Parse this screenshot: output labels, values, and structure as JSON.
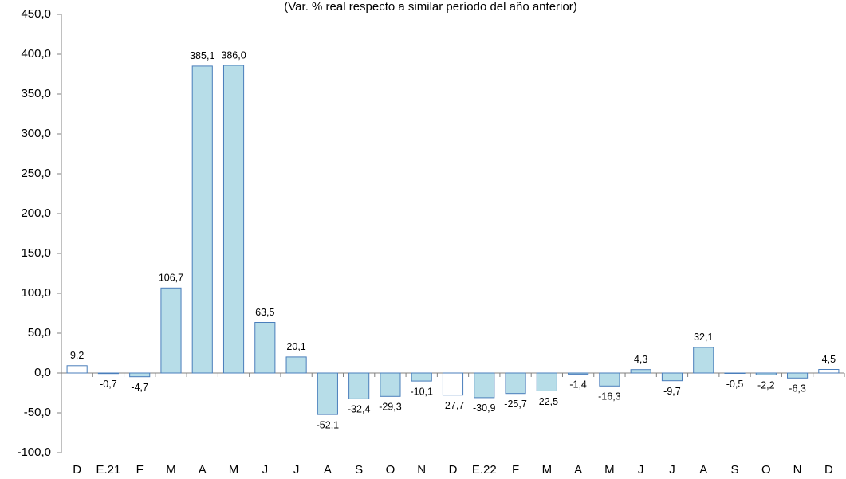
{
  "chart_data": {
    "type": "bar",
    "subtitle": "(Var. % real respecto a similar período del año anterior)",
    "categories": [
      "D",
      "E.21",
      "F",
      "M",
      "A",
      "M",
      "J",
      "J",
      "A",
      "S",
      "O",
      "N",
      "D",
      "E.22",
      "F",
      "M",
      "A",
      "M",
      "J",
      "J",
      "A",
      "S",
      "O",
      "N",
      "D"
    ],
    "values": [
      9.2,
      -0.7,
      -4.7,
      106.7,
      385.1,
      386.0,
      63.5,
      20.1,
      -52.1,
      -32.4,
      -29.3,
      -10.1,
      -27.7,
      -30.9,
      -25.7,
      -22.5,
      -1.4,
      -16.3,
      4.3,
      -9.7,
      32.1,
      -0.5,
      -2.2,
      -6.3,
      4.5
    ],
    "value_labels": [
      "9,2",
      "-0,7",
      "-4,7",
      "106,7",
      "385,1",
      "386,0",
      "63,5",
      "20,1",
      "-52,1",
      "-32,4",
      "-29,3",
      "-10,1",
      "-27,7",
      "-30,9",
      "-25,7",
      "-22,5",
      "-1,4",
      "-16,3",
      "4,3",
      "-9,7",
      "32,1",
      "-0,5",
      "-2,2",
      "-6,3",
      "4,5"
    ],
    "colors": [
      "#ffffff",
      "#b7dde8",
      "#b7dde8",
      "#b7dde8",
      "#b7dde8",
      "#b7dde8",
      "#b7dde8",
      "#b7dde8",
      "#b7dde8",
      "#b7dde8",
      "#b7dde8",
      "#b7dde8",
      "#ffffff",
      "#b7dde8",
      "#b7dde8",
      "#b7dde8",
      "#b7dde8",
      "#b7dde8",
      "#b7dde8",
      "#b7dde8",
      "#b7dde8",
      "#b7dde8",
      "#b7dde8",
      "#b7dde8",
      "#ffffff"
    ],
    "edge_color": "#4a7ebb",
    "ylim": [
      -100,
      450
    ],
    "yticks": [
      {
        "value": -100,
        "label": "-100,0"
      },
      {
        "value": -50,
        "label": "-50,0"
      },
      {
        "value": 0,
        "label": "0,0"
      },
      {
        "value": 50,
        "label": "50,0"
      },
      {
        "value": 100,
        "label": "100,0"
      },
      {
        "value": 150,
        "label": "150,0"
      },
      {
        "value": 200,
        "label": "200,0"
      },
      {
        "value": 250,
        "label": "250,0"
      },
      {
        "value": 300,
        "label": "300,0"
      },
      {
        "value": 350,
        "label": "350,0"
      },
      {
        "value": 400,
        "label": "400,0"
      },
      {
        "value": 450,
        "label": "450,0"
      }
    ]
  }
}
